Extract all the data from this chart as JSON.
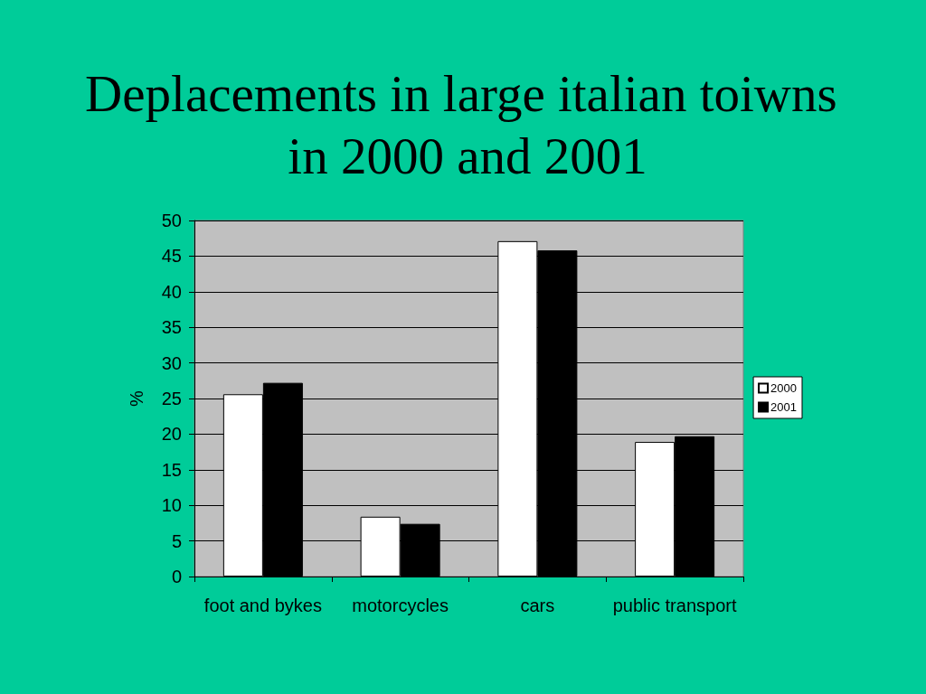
{
  "chart_data": {
    "type": "bar",
    "title": "Deplacements in large italian toiwns in 2000 and 2001",
    "ylabel": "%",
    "categories": [
      "foot and bykes",
      "motorcycles",
      "cars",
      "public transport"
    ],
    "series": [
      {
        "name": "2000",
        "color": "#ffffff",
        "values": [
          25.6,
          8.4,
          47.1,
          18.9
        ]
      },
      {
        "name": "2001",
        "color": "#000000",
        "values": [
          27.2,
          7.4,
          45.8,
          19.7
        ]
      }
    ],
    "ylim": [
      0,
      50
    ],
    "yticks": [
      0,
      5,
      10,
      15,
      20,
      25,
      30,
      35,
      40,
      45,
      50
    ],
    "grid": "y",
    "legend": "right"
  }
}
